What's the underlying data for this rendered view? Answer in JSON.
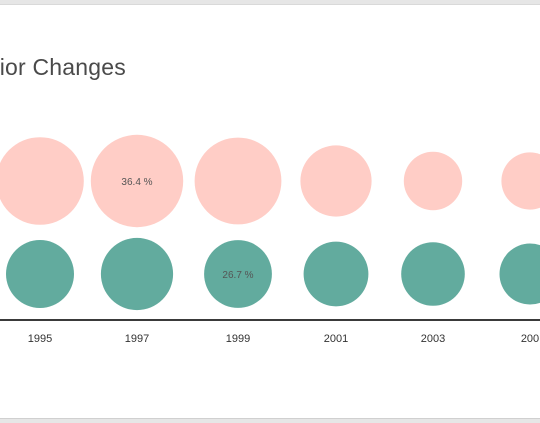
{
  "title": "vior Changes",
  "chart_data": {
    "type": "scatter",
    "title": "vior Changes",
    "categories": [
      "1995",
      "1997",
      "1999",
      "2001",
      "2003",
      "200"
    ],
    "series": [
      {
        "color": "#ffcdc6",
        "values": [
          34.5,
          36.4,
          34.2,
          28.0,
          23.0,
          22.5
        ],
        "labels": [
          "",
          "36.4 %",
          "",
          "",
          "",
          ""
        ]
      },
      {
        "color": "#62ab9e",
        "values": [
          26.8,
          28.4,
          26.7,
          25.5,
          25.0,
          24.0
        ],
        "labels": [
          "",
          "",
          "26.7 %",
          "",
          "",
          ""
        ]
      }
    ],
    "xlabel": "",
    "ylabel": "",
    "grid": false
  }
}
